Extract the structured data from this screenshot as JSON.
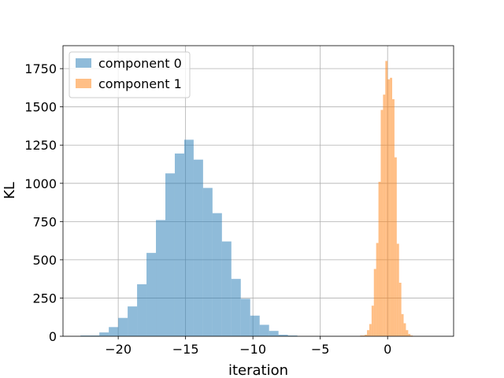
{
  "chart_data": {
    "type": "bar",
    "subtype": "histogram",
    "xlabel": "iteration",
    "ylabel": "KL",
    "xlim": [
      -24.1,
      4.9
    ],
    "ylim": [
      0,
      1900
    ],
    "xticks": [
      -20,
      -15,
      -10,
      -5,
      0
    ],
    "xtick_labels": [
      "−20",
      "−15",
      "−10",
      "−5",
      "0"
    ],
    "yticks": [
      0,
      250,
      500,
      750,
      1000,
      1250,
      1500,
      1750
    ],
    "grid": true,
    "legend_placement": "top-left",
    "series": [
      {
        "name": "component 0",
        "color": "#1f77b4",
        "opacity": 0.5,
        "bin_edges": [
          -22.8,
          -22.1,
          -21.4,
          -20.7,
          -20.0,
          -19.3,
          -18.6,
          -17.9,
          -17.2,
          -16.5,
          -15.8,
          -15.1,
          -14.4,
          -13.7,
          -13.0,
          -12.3,
          -11.6,
          -10.9,
          -10.2,
          -9.5,
          -8.8,
          -8.1,
          -7.4,
          -6.7
        ],
        "counts": [
          5,
          5,
          25,
          60,
          120,
          195,
          340,
          545,
          760,
          1065,
          1195,
          1285,
          1155,
          970,
          805,
          620,
          375,
          245,
          135,
          75,
          35,
          10,
          5
        ]
      },
      {
        "name": "component 1",
        "color": "#ff7f0e",
        "opacity": 0.5,
        "bin_edges": [
          -2.04,
          -1.87,
          -1.7,
          -1.53,
          -1.36,
          -1.19,
          -1.02,
          -0.85,
          -0.68,
          -0.51,
          -0.34,
          -0.17,
          0.0,
          0.17,
          0.34,
          0.51,
          0.68,
          0.85,
          1.02,
          1.19,
          1.36,
          1.53,
          1.7,
          1.87
        ],
        "counts": [
          5,
          5,
          10,
          40,
          80,
          200,
          440,
          610,
          1010,
          1480,
          1580,
          1800,
          1680,
          1690,
          1550,
          1170,
          605,
          350,
          145,
          85,
          40,
          15,
          5
        ]
      }
    ]
  }
}
